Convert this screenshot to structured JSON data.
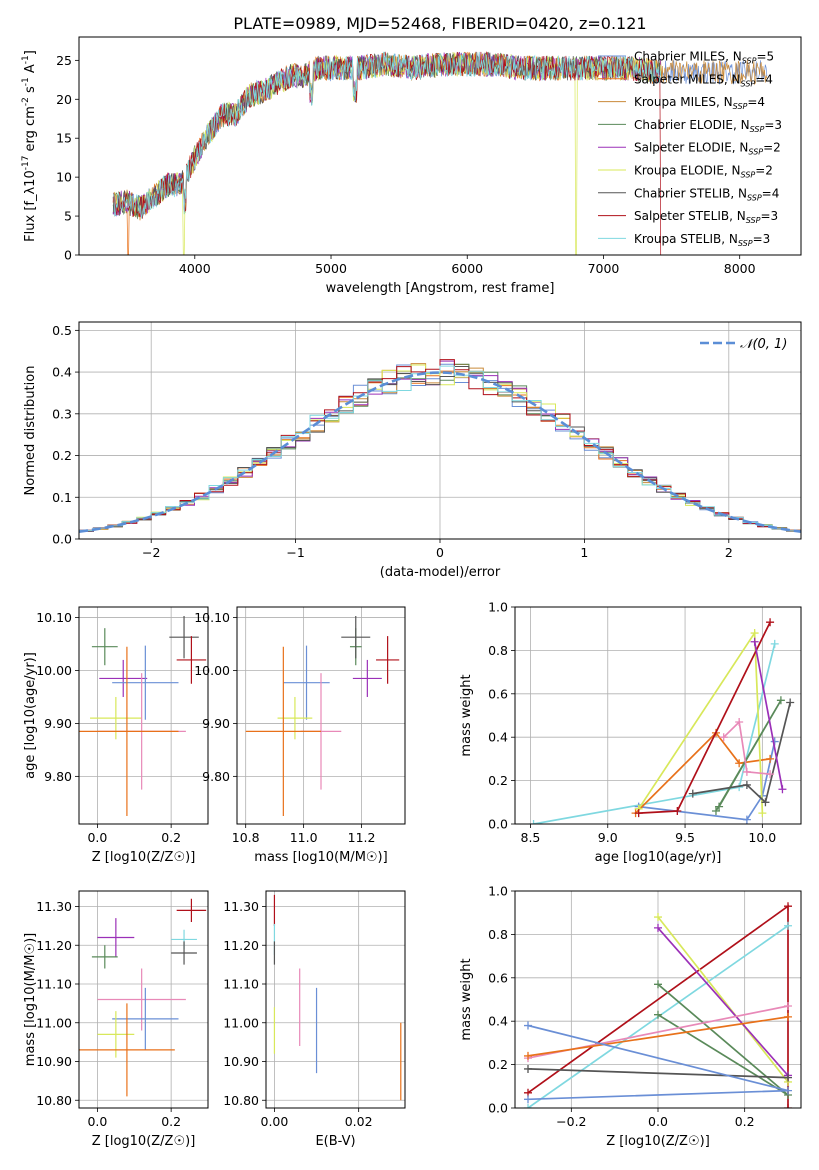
{
  "title": "PLATE=0989, MJD=52468, FIBERID=0420, z=0.121",
  "colors": {
    "chabrier_miles": "#6a8fd6",
    "salpeter_miles": "#e8711a",
    "kroupa_miles": "#c98a3a",
    "chabrier_elodie": "#5a8a5a",
    "salpeter_elodie": "#9b30b8",
    "kroupa_elodie": "#d8e85a",
    "chabrier_stelib": "#555555",
    "salpeter_stelib": "#b0101a",
    "kroupa_stelib": "#7fd8e0",
    "pink": "#e889b8",
    "gaussian": "#5b8ed6"
  },
  "chart_data": [
    {
      "id": "spectrum",
      "type": "line",
      "xlabel": "wavelength [Angstrom, rest frame]",
      "ylabel": "Flux [f_λ10^-17 erg cm^-2 s^-1 A^-1]",
      "xlim": [
        3150,
        8450
      ],
      "ylim": [
        0,
        28
      ],
      "xticks": [
        4000,
        5000,
        6000,
        7000,
        8000
      ],
      "yticks": [
        0,
        5,
        10,
        15,
        20,
        25
      ],
      "grid": false,
      "legend_position": "top-right",
      "series": [
        {
          "name": "Chabrier MILES, N_SSP=5",
          "color_key": "chabrier_miles"
        },
        {
          "name": "Salpeter MILES, N_SSP=4",
          "color_key": "salpeter_miles"
        },
        {
          "name": "Kroupa MILES, N_SSP=4",
          "color_key": "kroupa_miles"
        },
        {
          "name": "Chabrier ELODIE, N_SSP=3",
          "color_key": "chabrier_elodie"
        },
        {
          "name": "Salpeter ELODIE, N_SSP=2",
          "color_key": "salpeter_elodie"
        },
        {
          "name": "Kroupa ELODIE, N_SSP=2",
          "color_key": "kroupa_elodie"
        },
        {
          "name": "Chabrier STELIB, N_SSP=4",
          "color_key": "chabrier_stelib"
        },
        {
          "name": "Salpeter STELIB, N_SSP=3",
          "color_key": "salpeter_stelib"
        },
        {
          "name": "Kroupa STELIB, N_SSP=3",
          "color_key": "kroupa_stelib"
        }
      ],
      "continuum": {
        "x": [
          3400,
          3500,
          3600,
          3700,
          3800,
          3900,
          4000,
          4100,
          4200,
          4300,
          4400,
          4500,
          4600,
          4700,
          4800,
          4900,
          5000,
          5200,
          5400,
          5600,
          5800,
          6000,
          6200,
          6400,
          6600,
          6800,
          7000,
          7200,
          7400
        ],
        "y": [
          6.5,
          6.8,
          6.0,
          7.5,
          9.0,
          9.0,
          12.5,
          15.5,
          18.0,
          18.0,
          20.5,
          21.0,
          22.0,
          23.0,
          23.0,
          24.0,
          24.0,
          24.0,
          24.5,
          24.0,
          24.5,
          24.5,
          24.5,
          24.0,
          24.0,
          24.0,
          24.0,
          24.0,
          23.5
        ]
      },
      "dips": [
        {
          "series": 1,
          "x": 3510
        },
        {
          "series": 5,
          "x": 3920
        },
        {
          "series": 5,
          "x": 6800
        },
        {
          "series": 7,
          "x": 7420
        }
      ]
    },
    {
      "id": "residuals",
      "type": "histogram",
      "xlabel": "(data-model)/error",
      "ylabel": "Normed distribution",
      "xlim": [
        -2.5,
        2.5
      ],
      "ylim": [
        0,
        0.52
      ],
      "xticks": [
        -2,
        -1,
        0,
        1,
        2
      ],
      "yticks": [
        0.0,
        0.1,
        0.2,
        0.3,
        0.4,
        0.5
      ],
      "grid": true,
      "legend_position": "top-right",
      "gaussian_label": "𝒩(0, 1)",
      "bin_edges_start": -2.5,
      "bin_width": 0.1,
      "bins": 50
    },
    {
      "id": "age_vs_Z",
      "type": "errorbar",
      "xlabel": "Z [log10(Z/Z☉)]",
      "ylabel": "age  [log10(age/yr)]",
      "xlim": [
        -0.05,
        0.3
      ],
      "ylim": [
        9.71,
        10.12
      ],
      "xticks": [
        0.0,
        0.2
      ],
      "yticks": [
        9.8,
        9.9,
        10.0,
        10.1
      ],
      "grid": true,
      "points": [
        {
          "c": "chabrier_elodie",
          "x": 0.02,
          "xe": 0.035,
          "y": 10.045,
          "ye": 0.035
        },
        {
          "c": "chabrier_stelib",
          "x": 0.235,
          "xe": 0.04,
          "y": 10.063,
          "ye": 0.04
        },
        {
          "c": "salpeter_stelib",
          "x": 0.255,
          "xe": 0.04,
          "y": 10.02,
          "ye": 0.045
        },
        {
          "c": "salpeter_elodie",
          "x": 0.07,
          "xe": 0.065,
          "y": 9.985,
          "ye": 0.035
        },
        {
          "c": "chabrier_miles",
          "x": 0.13,
          "xe": 0.09,
          "y": 9.977,
          "ye": 0.07
        },
        {
          "c": "kroupa_elodie",
          "x": 0.05,
          "xe": 0.07,
          "y": 9.91,
          "ye": 0.04
        },
        {
          "c": "pink",
          "x": 0.12,
          "xe": 0.12,
          "y": 9.885,
          "ye": 0.11
        },
        {
          "c": "salpeter_miles",
          "x": 0.08,
          "xe": 0.14,
          "y": 9.885,
          "ye": 0.16
        }
      ]
    },
    {
      "id": "age_vs_mass",
      "type": "errorbar",
      "xlabel": "mass [log10(M/M☉)]",
      "ylabel": "",
      "xlim": [
        10.77,
        11.35
      ],
      "ylim": [
        9.71,
        10.12
      ],
      "xticks": [
        10.8,
        11.0,
        11.2
      ],
      "yticks": [
        9.8,
        9.9,
        10.0,
        10.1
      ],
      "grid": true,
      "points": [
        {
          "c": "chabrier_elodie",
          "x": 11.18,
          "xe": 0.02,
          "y": 10.045,
          "ye": 0.035
        },
        {
          "c": "chabrier_stelib",
          "x": 11.18,
          "xe": 0.05,
          "y": 10.063,
          "ye": 0.04
        },
        {
          "c": "salpeter_stelib",
          "x": 11.29,
          "xe": 0.04,
          "y": 10.02,
          "ye": 0.045
        },
        {
          "c": "salpeter_elodie",
          "x": 11.22,
          "xe": 0.05,
          "y": 9.985,
          "ye": 0.035
        },
        {
          "c": "chabrier_miles",
          "x": 11.01,
          "xe": 0.08,
          "y": 9.977,
          "ye": 0.07
        },
        {
          "c": "kroupa_elodie",
          "x": 10.97,
          "xe": 0.06,
          "y": 9.91,
          "ye": 0.04
        },
        {
          "c": "pink",
          "x": 11.06,
          "xe": 0.07,
          "y": 9.885,
          "ye": 0.11
        },
        {
          "c": "salpeter_miles",
          "x": 10.93,
          "xe": 0.13,
          "y": 9.885,
          "ye": 0.16
        }
      ]
    },
    {
      "id": "weight_vs_age",
      "type": "line",
      "xlabel": "age  [log10(age/yr)]",
      "ylabel": "mass weight",
      "xlim": [
        8.4,
        10.25
      ],
      "ylim": [
        0,
        1
      ],
      "xticks": [
        8.5,
        9.0,
        9.5,
        10.0
      ],
      "yticks": [
        0.0,
        0.2,
        0.4,
        0.6,
        0.8,
        1.0
      ],
      "grid": true,
      "series": [
        {
          "c": "kroupa_stelib",
          "x": [
            8.52,
            9.85,
            10.08
          ],
          "y": [
            0.0,
            0.17,
            0.83
          ]
        },
        {
          "c": "chabrier_miles",
          "x": [
            9.2,
            9.9,
            10.0,
            10.08
          ],
          "y": [
            0.08,
            0.02,
            0.13,
            0.38
          ]
        },
        {
          "c": "salpeter_miles",
          "x": [
            9.18,
            9.7,
            9.85,
            10.05
          ],
          "y": [
            0.05,
            0.42,
            0.28,
            0.3
          ]
        },
        {
          "c": "kroupa_elodie",
          "x": [
            9.2,
            9.95,
            10.0
          ],
          "y": [
            0.07,
            0.88,
            0.05
          ]
        },
        {
          "c": "salpeter_stelib",
          "x": [
            9.2,
            9.45,
            10.05
          ],
          "y": [
            0.05,
            0.06,
            0.93
          ]
        },
        {
          "c": "chabrier_elodie",
          "x": [
            9.7,
            10.12,
            9.72
          ],
          "y": [
            0.06,
            0.57,
            0.08
          ]
        },
        {
          "c": "chabrier_stelib",
          "x": [
            9.55,
            9.9,
            10.02,
            10.18
          ],
          "y": [
            0.14,
            0.18,
            0.1,
            0.56
          ]
        },
        {
          "c": "salpeter_elodie",
          "x": [
            9.95,
            10.13
          ],
          "y": [
            0.84,
            0.16
          ]
        },
        {
          "c": "pink",
          "x": [
            9.75,
            9.85,
            9.9,
            10.05
          ],
          "y": [
            0.4,
            0.47,
            0.24,
            0.23
          ]
        }
      ]
    },
    {
      "id": "mass_vs_Z",
      "type": "errorbar",
      "xlabel": "Z [log10(Z/Z☉)]",
      "ylabel": "mass [log10(M/M☉)]",
      "xlim": [
        -0.05,
        0.3
      ],
      "ylim": [
        10.78,
        11.34
      ],
      "xticks": [
        0.0,
        0.2
      ],
      "yticks": [
        10.8,
        10.9,
        11.0,
        11.1,
        11.2,
        11.3
      ],
      "grid": true,
      "points": [
        {
          "c": "salpeter_stelib",
          "x": 0.255,
          "xe": 0.04,
          "y": 11.29,
          "ye": 0.03
        },
        {
          "c": "salpeter_elodie",
          "x": 0.05,
          "xe": 0.05,
          "y": 11.22,
          "ye": 0.05
        },
        {
          "c": "chabrier_elodie",
          "x": 0.02,
          "xe": 0.035,
          "y": 11.17,
          "ye": 0.03
        },
        {
          "c": "kroupa_stelib",
          "x": 0.235,
          "xe": 0.035,
          "y": 11.215,
          "ye": 0.025
        },
        {
          "c": "chabrier_stelib",
          "x": 0.235,
          "xe": 0.035,
          "y": 11.18,
          "ye": 0.03
        },
        {
          "c": "pink",
          "x": 0.12,
          "xe": 0.12,
          "y": 11.06,
          "ye": 0.08
        },
        {
          "c": "chabrier_miles",
          "x": 0.13,
          "xe": 0.09,
          "y": 11.01,
          "ye": 0.08
        },
        {
          "c": "kroupa_elodie",
          "x": 0.05,
          "xe": 0.05,
          "y": 10.97,
          "ye": 0.06
        },
        {
          "c": "salpeter_miles",
          "x": 0.08,
          "xe": 0.13,
          "y": 10.93,
          "ye": 0.12
        }
      ]
    },
    {
      "id": "mass_vs_ebv",
      "type": "errorbar",
      "xlabel": "E(B-V)",
      "ylabel": "",
      "xlim": [
        -0.002,
        0.031
      ],
      "ylim": [
        10.78,
        11.34
      ],
      "xticks": [
        0.0,
        0.02
      ],
      "yticks": [
        10.8,
        10.9,
        11.0,
        11.1,
        11.2,
        11.3
      ],
      "grid": true,
      "points": [
        {
          "c": "salpeter_stelib",
          "x": 0.0,
          "xe": 0.0,
          "y": 11.29,
          "ye": 0.04
        },
        {
          "c": "kroupa_stelib",
          "x": 0.0,
          "xe": 0.0,
          "y": 11.215,
          "ye": 0.04
        },
        {
          "c": "chabrier_stelib",
          "x": 0.0,
          "xe": 0.0,
          "y": 11.18,
          "ye": 0.03
        },
        {
          "c": "pink",
          "x": 0.006,
          "xe": 0.0,
          "y": 11.04,
          "ye": 0.1
        },
        {
          "c": "chabrier_miles",
          "x": 0.01,
          "xe": 0.0,
          "y": 10.98,
          "ye": 0.11
        },
        {
          "c": "kroupa_elodie",
          "x": 0.0,
          "xe": 0.0,
          "y": 10.98,
          "ye": 0.06
        },
        {
          "c": "salpeter_miles",
          "x": 0.03,
          "xe": 0.0,
          "y": 10.9,
          "ye": 0.1
        }
      ]
    },
    {
      "id": "weight_vs_Z",
      "type": "line",
      "xlabel": "Z [log10(Z/Z☉)]",
      "ylabel": "mass weight",
      "xlim": [
        -0.33,
        0.33
      ],
      "ylim": [
        0,
        1
      ],
      "xticks": [
        -0.2,
        0.0,
        0.2
      ],
      "yticks": [
        0.0,
        0.2,
        0.4,
        0.6,
        0.8,
        1.0
      ],
      "grid": true,
      "series": [
        {
          "c": "salpeter_stelib",
          "x": [
            -0.3,
            0.3,
            0.3
          ],
          "y": [
            0.07,
            0.93,
            0.0
          ]
        },
        {
          "c": "kroupa_stelib",
          "x": [
            -0.3,
            0.3
          ],
          "y": [
            0.0,
            0.84
          ]
        },
        {
          "c": "kroupa_elodie",
          "x": [
            0.0,
            0.3
          ],
          "y": [
            0.88,
            0.12
          ]
        },
        {
          "c": "salpeter_elodie",
          "x": [
            0.0,
            0.3
          ],
          "y": [
            0.83,
            0.15
          ]
        },
        {
          "c": "chabrier_elodie",
          "x": [
            0.0,
            0.3,
            0.0
          ],
          "y": [
            0.57,
            0.06,
            0.43
          ]
        },
        {
          "c": "pink",
          "x": [
            -0.3,
            0.3
          ],
          "y": [
            0.23,
            0.47
          ]
        },
        {
          "c": "salpeter_miles",
          "x": [
            -0.3,
            0.3
          ],
          "y": [
            0.24,
            0.42
          ]
        },
        {
          "c": "chabrier_stelib",
          "x": [
            -0.3,
            0.3
          ],
          "y": [
            0.18,
            0.14
          ]
        },
        {
          "c": "chabrier_miles",
          "x": [
            -0.3,
            0.3,
            -0.3
          ],
          "y": [
            0.04,
            0.08,
            0.38
          ]
        }
      ]
    }
  ]
}
